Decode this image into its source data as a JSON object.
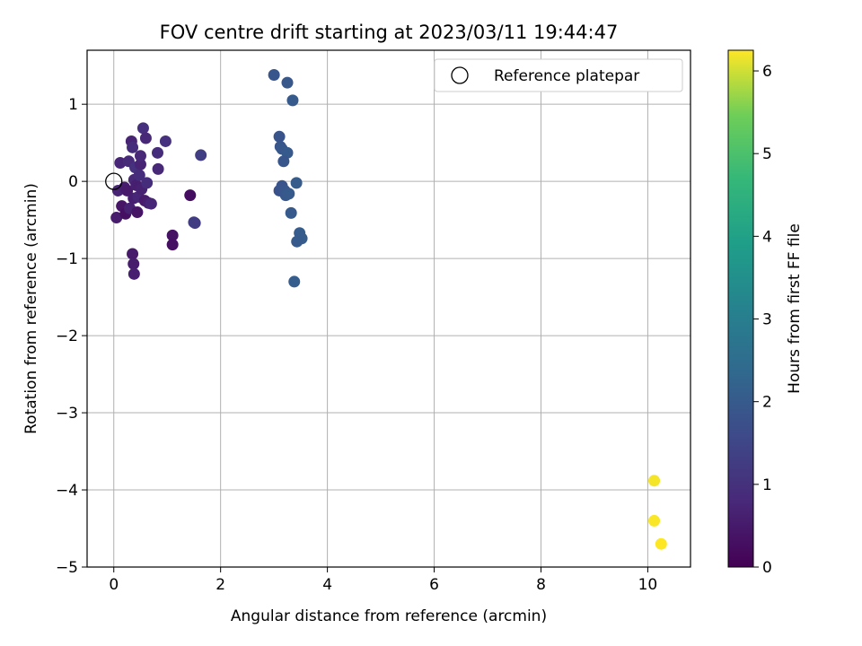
{
  "chart_data": {
    "type": "scatter",
    "title": "FOV centre drift starting at 2023/03/11 19:44:47",
    "xlabel": "Angular distance from reference (arcmin)",
    "ylabel": "Rotation from reference (arcmin)",
    "xlim": [
      -0.5,
      10.8
    ],
    "ylim": [
      -5.0,
      1.7
    ],
    "xticks": [
      0,
      2,
      4,
      6,
      8,
      10
    ],
    "yticks": [
      -5,
      -4,
      -3,
      -2,
      -1,
      0,
      1
    ],
    "grid": true,
    "legend": {
      "placement": "top-right",
      "entries": [
        "Reference platepar"
      ]
    },
    "colorbar": {
      "label": "Hours from first FF file",
      "min": 0,
      "max": 6.25,
      "ticks": [
        0,
        1,
        2,
        3,
        4,
        5,
        6
      ],
      "colormap": "viridis"
    },
    "reference_point": {
      "x": 0,
      "y": 0
    },
    "points": [
      {
        "x": 0.05,
        "y": -0.47,
        "h": 0.55
      },
      {
        "x": 0.08,
        "y": -0.12,
        "h": 0.7
      },
      {
        "x": 0.12,
        "y": 0.24,
        "h": 0.75
      },
      {
        "x": 0.15,
        "y": -0.32,
        "h": 0.4
      },
      {
        "x": 0.2,
        "y": -0.08,
        "h": 0.6
      },
      {
        "x": 0.22,
        "y": -0.42,
        "h": 0.3
      },
      {
        "x": 0.25,
        "y": -0.12,
        "h": 0.5
      },
      {
        "x": 0.28,
        "y": 0.26,
        "h": 0.85
      },
      {
        "x": 0.3,
        "y": -0.35,
        "h": 0.65
      },
      {
        "x": 0.33,
        "y": 0.52,
        "h": 0.7
      },
      {
        "x": 0.35,
        "y": 0.44,
        "h": 0.9
      },
      {
        "x": 0.37,
        "y": -0.22,
        "h": 0.6
      },
      {
        "x": 0.38,
        "y": 0.02,
        "h": 0.8
      },
      {
        "x": 0.4,
        "y": 0.18,
        "h": 1.0
      },
      {
        "x": 0.42,
        "y": -0.05,
        "h": 0.6
      },
      {
        "x": 0.44,
        "y": -0.4,
        "h": 0.4
      },
      {
        "x": 0.46,
        "y": -0.2,
        "h": 0.75
      },
      {
        "x": 0.48,
        "y": 0.08,
        "h": 0.9
      },
      {
        "x": 0.5,
        "y": 0.22,
        "h": 0.7
      },
      {
        "x": 0.5,
        "y": 0.33,
        "h": 0.8
      },
      {
        "x": 0.52,
        "y": -0.1,
        "h": 0.65
      },
      {
        "x": 0.55,
        "y": 0.69,
        "h": 0.95
      },
      {
        "x": 0.58,
        "y": -0.25,
        "h": 0.5
      },
      {
        "x": 0.6,
        "y": 0.56,
        "h": 0.8
      },
      {
        "x": 0.62,
        "y": -0.02,
        "h": 0.9
      },
      {
        "x": 0.65,
        "y": -0.28,
        "h": 0.6
      },
      {
        "x": 0.7,
        "y": -0.29,
        "h": 0.75
      },
      {
        "x": 0.82,
        "y": 0.37,
        "h": 0.9
      },
      {
        "x": 0.83,
        "y": 0.16,
        "h": 0.8
      },
      {
        "x": 0.97,
        "y": 0.52,
        "h": 1.0
      },
      {
        "x": 0.35,
        "y": -0.94,
        "h": 0.5
      },
      {
        "x": 0.37,
        "y": -1.07,
        "h": 0.55
      },
      {
        "x": 0.38,
        "y": -1.2,
        "h": 0.6
      },
      {
        "x": 1.1,
        "y": -0.7,
        "h": 0.35
      },
      {
        "x": 1.1,
        "y": -0.82,
        "h": 0.3
      },
      {
        "x": 1.43,
        "y": -0.18,
        "h": 0.25
      },
      {
        "x": 1.5,
        "y": -0.53,
        "h": 1.3
      },
      {
        "x": 1.52,
        "y": -0.54,
        "h": 1.25
      },
      {
        "x": 1.63,
        "y": 0.34,
        "h": 1.3
      },
      {
        "x": 3.0,
        "y": 1.38,
        "h": 1.9
      },
      {
        "x": 3.25,
        "y": 1.28,
        "h": 1.95
      },
      {
        "x": 3.35,
        "y": 1.05,
        "h": 2.0
      },
      {
        "x": 3.1,
        "y": 0.58,
        "h": 1.85
      },
      {
        "x": 3.12,
        "y": 0.45,
        "h": 1.9
      },
      {
        "x": 3.15,
        "y": 0.42,
        "h": 1.95
      },
      {
        "x": 3.25,
        "y": 0.37,
        "h": 2.0
      },
      {
        "x": 3.18,
        "y": 0.26,
        "h": 1.9
      },
      {
        "x": 3.1,
        "y": -0.12,
        "h": 1.8
      },
      {
        "x": 3.15,
        "y": -0.06,
        "h": 1.85
      },
      {
        "x": 3.2,
        "y": -0.12,
        "h": 1.9
      },
      {
        "x": 3.22,
        "y": -0.18,
        "h": 1.95
      },
      {
        "x": 3.28,
        "y": -0.16,
        "h": 2.0
      },
      {
        "x": 3.42,
        "y": -0.02,
        "h": 2.05
      },
      {
        "x": 3.32,
        "y": -0.41,
        "h": 2.0
      },
      {
        "x": 3.48,
        "y": -0.67,
        "h": 2.05
      },
      {
        "x": 3.52,
        "y": -0.74,
        "h": 2.05
      },
      {
        "x": 3.43,
        "y": -0.78,
        "h": 2.0
      },
      {
        "x": 3.38,
        "y": -1.3,
        "h": 2.1
      },
      {
        "x": 10.12,
        "y": -3.88,
        "h": 6.2
      },
      {
        "x": 10.12,
        "y": -4.4,
        "h": 6.22
      },
      {
        "x": 10.25,
        "y": -4.7,
        "h": 6.25
      }
    ]
  }
}
